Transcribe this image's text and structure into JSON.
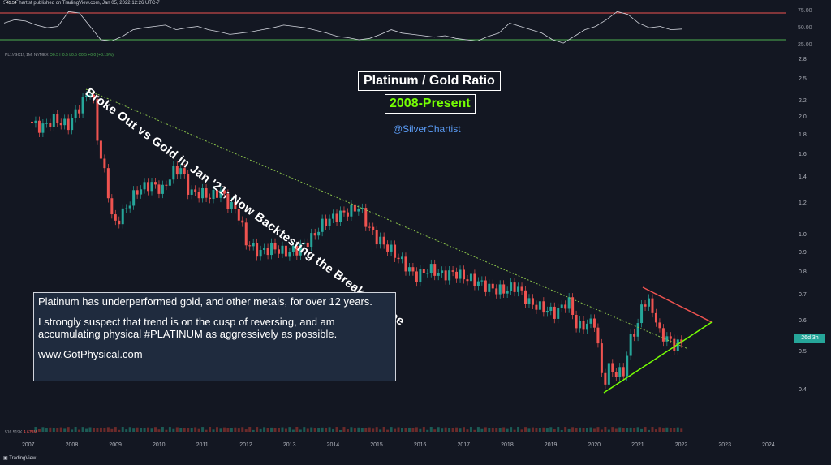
{
  "header": {
    "text": "SilverChartist published on TradingView.com, Jan 05, 2022 12:26 UTC-7"
  },
  "rsi": {
    "value_label": "45.54",
    "upper": 70,
    "lower": 30,
    "axis_labels": [
      "75.00",
      "50.00",
      "25.00"
    ],
    "upper_color": "#ef5350",
    "lower_color": "#4caf50"
  },
  "legend": {
    "symbol": "PL1!/GC1!, 1M, NYMEX",
    "values": "O0.5  H0.5  L0.5  C0.5  +0.0 (+3.19%)"
  },
  "annotations": {
    "title": "Platinum / Gold Ratio",
    "subtitle": "2008-Present",
    "handle": "@SilverChartist",
    "diagonal": "Broke Out vs Gold in Jan '21; Now Backtesting the Breakout Line",
    "note_p1": "Platinum has underperformed gold, and other metals, for over 12 years.",
    "note_p2": "I strongly suspect that trend is on the cusp of reversing, and am accumulating physical #PLATINUM as aggressively as possible.",
    "note_link": "www.GotPhysical.com"
  },
  "price_tag": "26d 3h",
  "volume": {
    "label": "516.519K",
    "value": "4.675M"
  },
  "footer": {
    "text": "TradingView"
  },
  "colors": {
    "up": "#26a69a",
    "down": "#ef5350",
    "background": "#131722",
    "triangle_upper": "#ef5350",
    "triangle_lower": "#76ff03",
    "trendline": "#8bc34a"
  },
  "chart_data": {
    "type": "line",
    "scale": "log",
    "title": "Platinum / Gold Ratio",
    "subtitle": "2008-Present",
    "x_ticks": [
      "2007",
      "2008",
      "2009",
      "2010",
      "2011",
      "2012",
      "2013",
      "2014",
      "2015",
      "2016",
      "2017",
      "2018",
      "2019",
      "2020",
      "2021",
      "2022",
      "2023",
      "2024"
    ],
    "y_ticks": [
      "2.8",
      "2.5",
      "2.2",
      "2.0",
      "1.8",
      "1.6",
      "1.4",
      "1.2",
      "1.0",
      "0.9",
      "0.8",
      "0.7",
      "0.6",
      "0.5",
      "0.4"
    ],
    "ylim": [
      0.36,
      2.85
    ],
    "series": [
      {
        "x": [
          2007.0,
          2007.3,
          2007.6,
          2007.9,
          2008.2,
          2008.45,
          2008.6,
          2008.8,
          2008.95,
          2009.2,
          2009.5,
          2009.8,
          2010.1,
          2010.3,
          2010.5,
          2010.7,
          2010.95,
          2011.2,
          2011.4,
          2011.6,
          2011.8,
          2012.0,
          2012.3,
          2012.6,
          2012.9,
          2013.2,
          2013.5,
          2013.8,
          2014.1,
          2014.35,
          2014.6,
          2014.8,
          2015.0,
          2015.3,
          2015.6,
          2015.9,
          2016.2,
          2016.5,
          2016.8,
          2017.0,
          2017.3,
          2017.6,
          2017.9,
          2018.2,
          2018.5,
          2018.8,
          2019.1,
          2019.4,
          2019.6,
          2019.8,
          2020.0,
          2020.1,
          2020.2,
          2020.35,
          2020.5,
          2020.7,
          2020.85,
          2021.0,
          2021.1,
          2021.3,
          2021.5,
          2021.7,
          2021.85,
          2022.0
        ],
        "y": [
          1.95,
          1.88,
          1.98,
          1.9,
          2.15,
          2.38,
          1.7,
          1.35,
          1.05,
          1.15,
          1.3,
          1.35,
          1.3,
          1.45,
          1.48,
          1.28,
          1.28,
          1.25,
          1.3,
          1.2,
          1.15,
          0.96,
          0.9,
          0.93,
          0.9,
          0.92,
          0.98,
          1.08,
          1.12,
          1.15,
          1.18,
          1.05,
          0.98,
          0.92,
          0.85,
          0.78,
          0.82,
          0.79,
          0.8,
          0.78,
          0.76,
          0.73,
          0.72,
          0.74,
          0.67,
          0.65,
          0.63,
          0.68,
          0.58,
          0.59,
          0.6,
          0.5,
          0.41,
          0.46,
          0.44,
          0.45,
          0.56,
          0.58,
          0.68,
          0.66,
          0.56,
          0.54,
          0.52,
          0.53
        ]
      }
    ],
    "rsi_series": [
      55,
      60,
      58,
      52,
      48,
      50,
      72,
      70,
      50,
      30,
      28,
      35,
      45,
      48,
      50,
      52,
      45,
      48,
      50,
      45,
      42,
      38,
      40,
      42,
      45,
      48,
      52,
      50,
      48,
      44,
      40,
      35,
      33,
      30,
      32,
      38,
      45,
      40,
      38,
      36,
      34,
      36,
      32,
      30,
      28,
      35,
      40,
      55,
      50,
      45,
      40,
      30,
      25,
      35,
      45,
      50,
      60,
      72,
      68,
      55,
      48,
      50,
      45,
      46
    ]
  }
}
